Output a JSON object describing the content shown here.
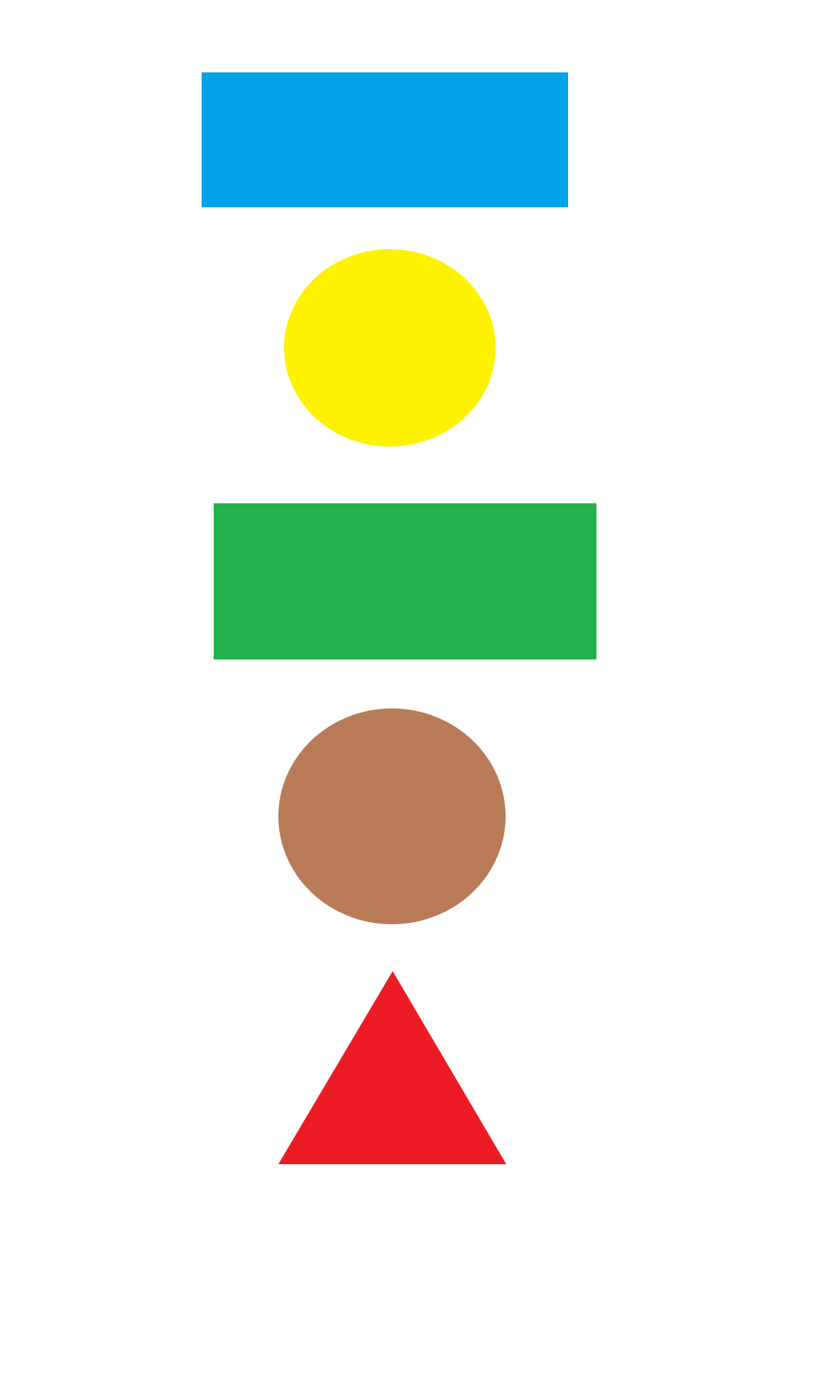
{
  "shapes": [
    {
      "id": "shape-1",
      "kind": "rectangle",
      "color_name": "blue",
      "fill": "#00A2E8"
    },
    {
      "id": "shape-2",
      "kind": "ellipse",
      "color_name": "yellow",
      "fill": "#FFF200"
    },
    {
      "id": "shape-3",
      "kind": "rectangle",
      "color_name": "green",
      "fill": "#22B14C"
    },
    {
      "id": "shape-4",
      "kind": "ellipse",
      "color_name": "brown",
      "fill": "#B97A57"
    },
    {
      "id": "shape-5",
      "kind": "triangle",
      "color_name": "red",
      "fill": "#ED1C24"
    }
  ]
}
